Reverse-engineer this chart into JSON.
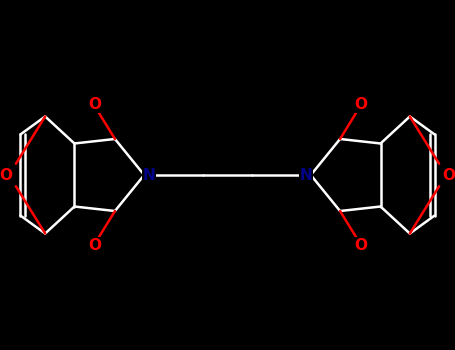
{
  "bg_color": "#000000",
  "bond_color": "#ffffff",
  "N_color": "#00008b",
  "O_color": "#ff0000",
  "lw": 1.8,
  "fs": 11,
  "xlim": [
    0,
    10
  ],
  "ylim": [
    0,
    7.7
  ],
  "figsize": [
    4.55,
    3.5
  ],
  "dpi": 100
}
